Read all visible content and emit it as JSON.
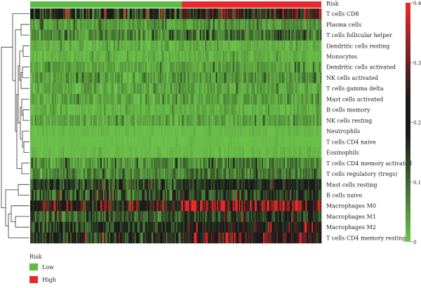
{
  "chart_data": {
    "type": "heatmap",
    "annotation_label": "Risk",
    "groups": [
      {
        "name": "Low",
        "color": "#5dbb47"
      },
      {
        "name": "High",
        "color": "#e8282c"
      }
    ],
    "rows": [
      {
        "label": "T cells CD8",
        "level": 0.14,
        "spread": 0.12
      },
      {
        "label": "Plasma cells",
        "level": 0.03,
        "spread": 0.03
      },
      {
        "label": "T cells follicular helper",
        "level": 0.05,
        "spread": 0.05
      },
      {
        "label": "Dendritic cells resting",
        "level": 0.01,
        "spread": 0.02
      },
      {
        "label": "Monocytes",
        "level": 0.01,
        "spread": 0.02
      },
      {
        "label": "Dendritic cells activated",
        "level": 0.02,
        "spread": 0.03
      },
      {
        "label": "NK cells activated",
        "level": 0.03,
        "spread": 0.04
      },
      {
        "label": "T cells gamma delta",
        "level": 0.02,
        "spread": 0.03
      },
      {
        "label": "Mast cells activated",
        "level": 0.02,
        "spread": 0.03
      },
      {
        "label": "B cells memory",
        "level": 0.01,
        "spread": 0.02
      },
      {
        "label": "NK cells resting",
        "level": 0.02,
        "spread": 0.03
      },
      {
        "label": "Neutrophils",
        "level": 0.005,
        "spread": 0.01
      },
      {
        "label": "T cells CD4 naive",
        "level": 0.003,
        "spread": 0.005
      },
      {
        "label": "Eosinophils",
        "level": 0.005,
        "spread": 0.01
      },
      {
        "label": "T cells CD4 memory activated",
        "level": 0.04,
        "spread": 0.05
      },
      {
        "label": "T cells regulatory (tregs)",
        "level": 0.05,
        "spread": 0.05
      },
      {
        "label": "Mast cells resting",
        "level": 0.12,
        "spread": 0.06
      },
      {
        "label": "B cells naive",
        "level": 0.1,
        "spread": 0.07
      },
      {
        "label": "Macrophages M0",
        "level": 0.22,
        "spread": 0.12
      },
      {
        "label": "Macrophages M1",
        "level": 0.1,
        "spread": 0.06
      },
      {
        "label": "Macrophages M2",
        "level": 0.15,
        "spread": 0.08
      },
      {
        "label": "T cells CD4 memory resting",
        "level": 0.16,
        "spread": 0.1
      }
    ],
    "colorbar": {
      "min": 0,
      "max": 0.4,
      "ticks": [
        "0",
        "0.1",
        "0.2",
        "0.3",
        "0.4"
      ],
      "colors": [
        "#6cc24a",
        "#1a1a1a",
        "#ee2a2a"
      ]
    }
  },
  "legend": {
    "title": "Risk",
    "items": [
      {
        "label": "Low",
        "color": "#5dbb47"
      },
      {
        "label": "High",
        "color": "#e8282c"
      }
    ]
  }
}
